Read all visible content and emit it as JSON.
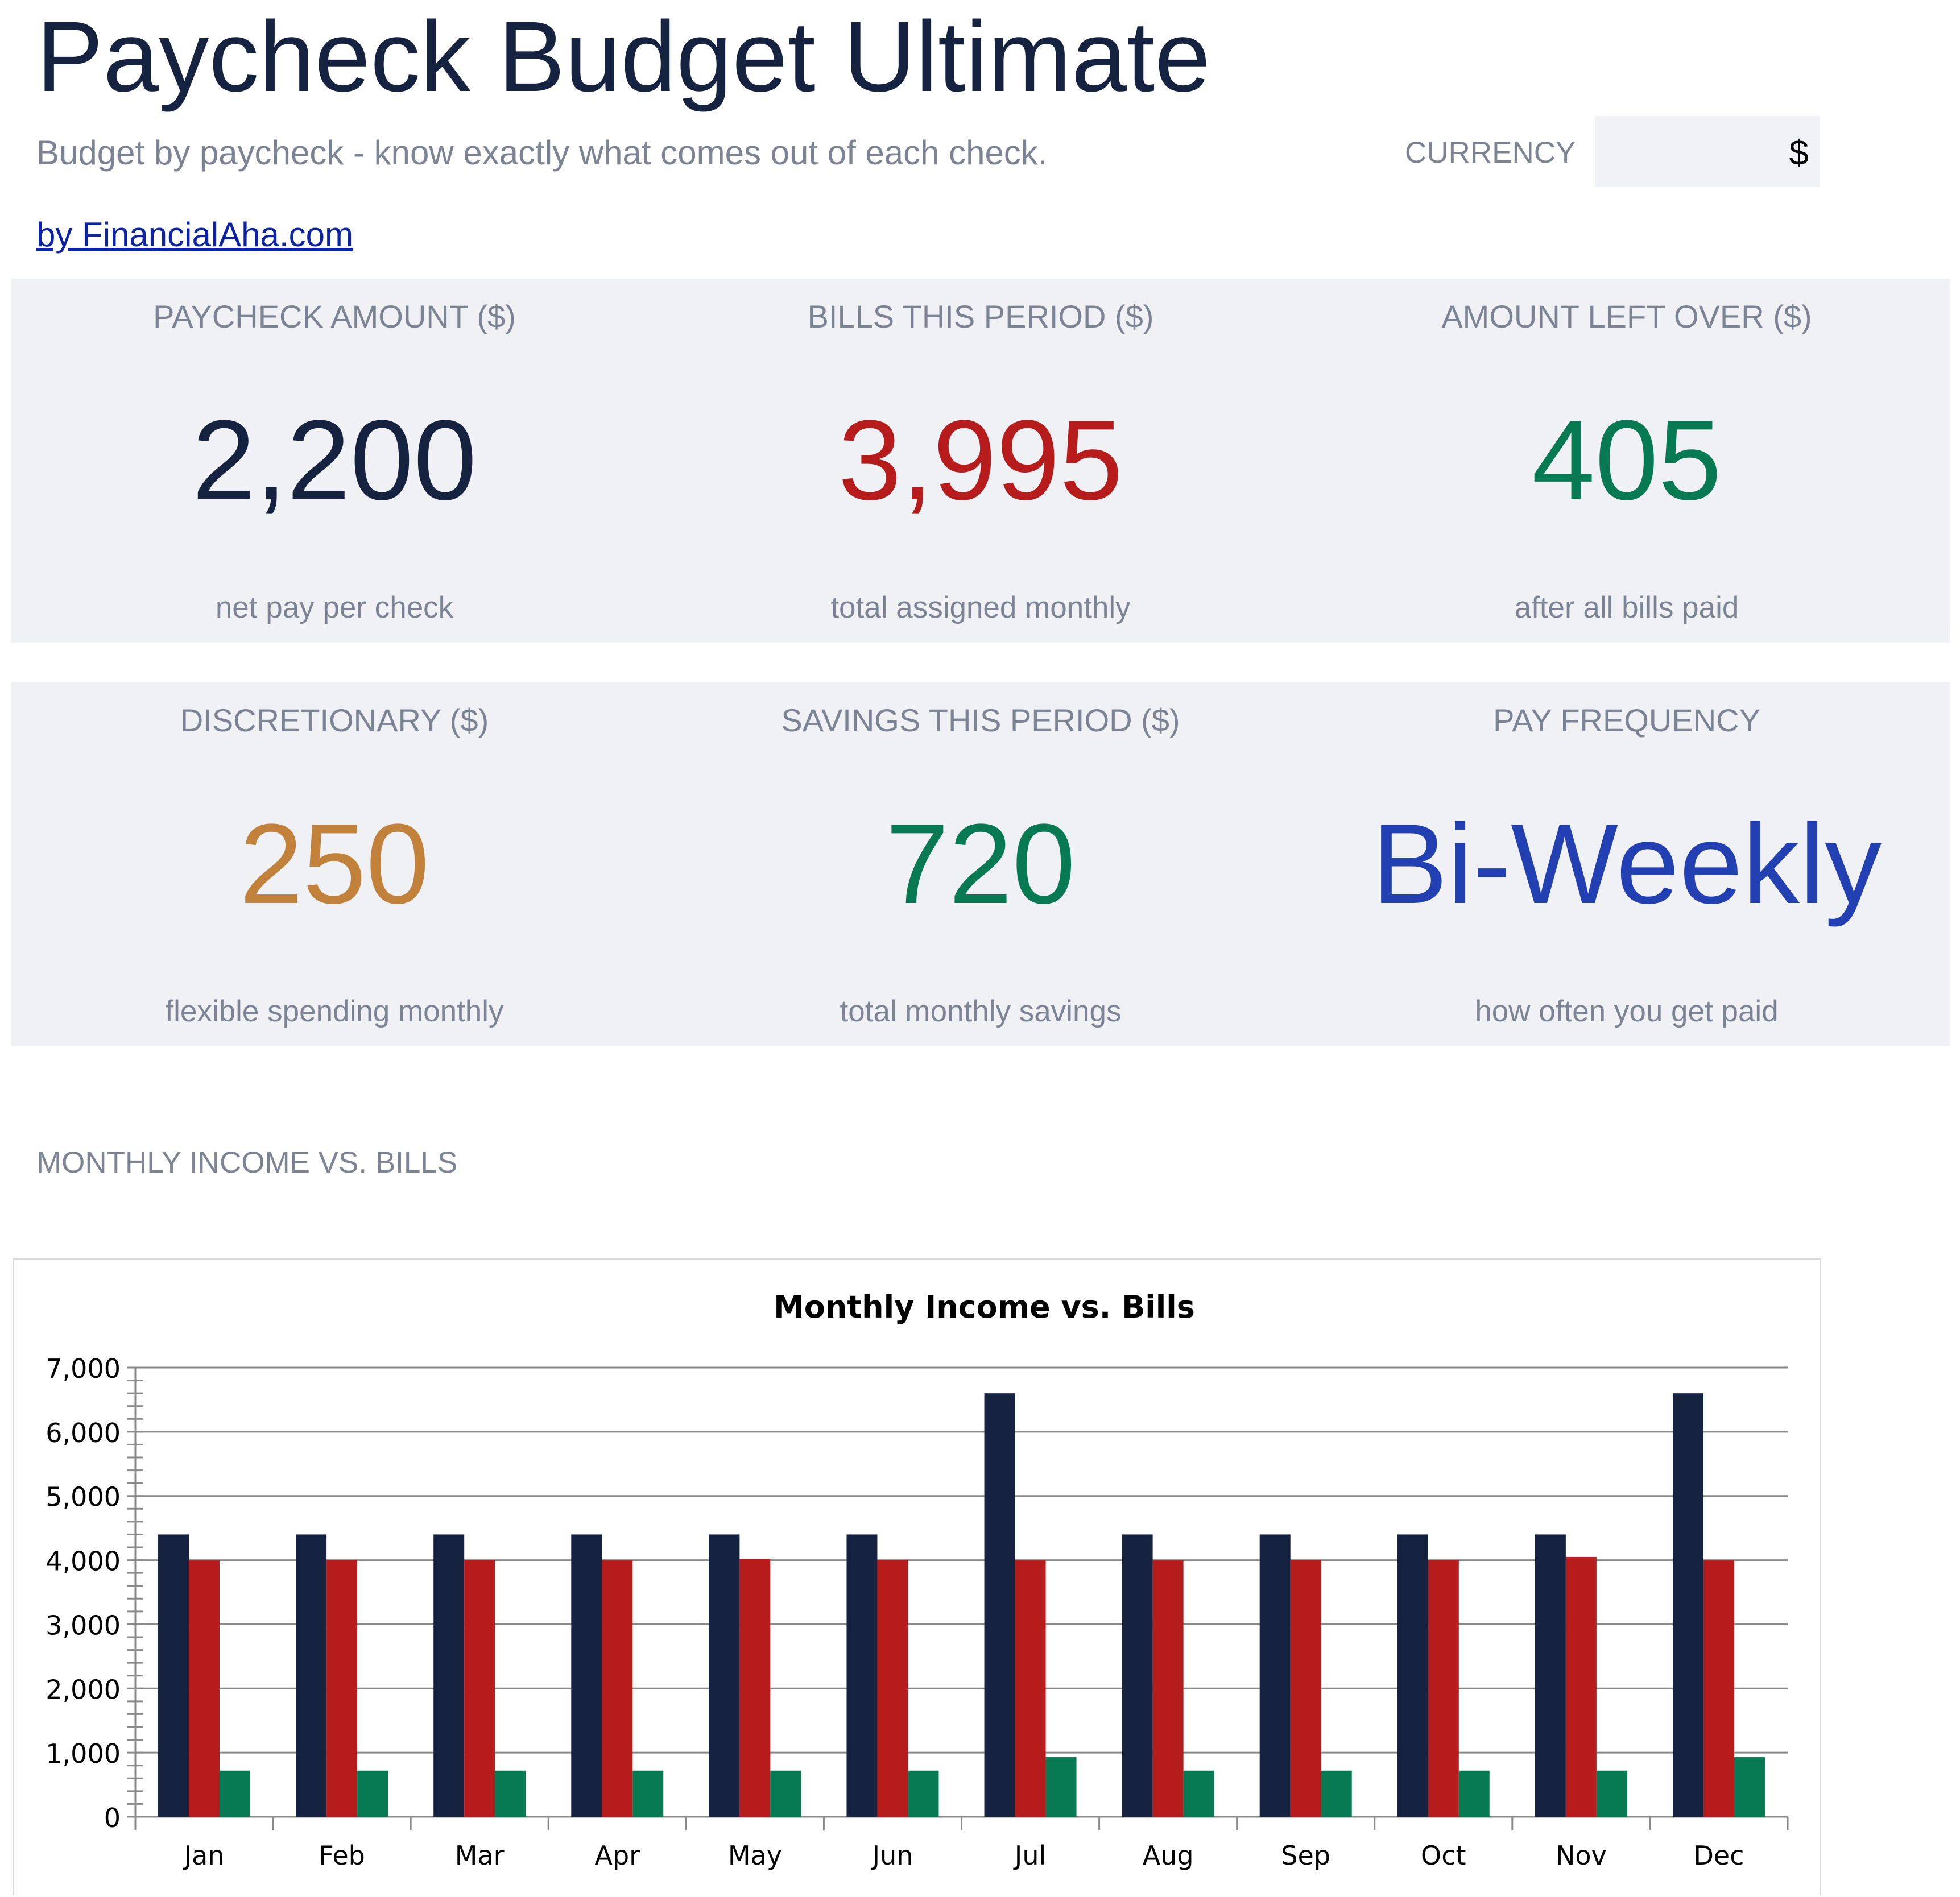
{
  "header": {
    "title": "Paycheck Budget Ultimate",
    "subtitle": "Budget by paycheck - know exactly what comes out of each check.",
    "byline": "by FinancialAha.com",
    "currency_label": "CURRENCY",
    "currency_value": "$"
  },
  "cards": [
    {
      "label": "PAYCHECK AMOUNT ($)",
      "value": "2,200",
      "note": "net pay per check",
      "color": "#162340"
    },
    {
      "label": "BILLS THIS PERIOD ($)",
      "value": "3,995",
      "note": "total assigned monthly",
      "color": "#b71c1c"
    },
    {
      "label": "AMOUNT LEFT OVER ($)",
      "value": "405",
      "note": "after all bills paid",
      "color": "#087a53"
    },
    {
      "label": "DISCRETIONARY ($)",
      "value": "250",
      "note": "flexible spending monthly",
      "color": "#c2813b"
    },
    {
      "label": "SAVINGS THIS PERIOD ($)",
      "value": "720",
      "note": "total monthly savings",
      "color": "#087a53"
    },
    {
      "label": "PAY FREQUENCY",
      "value": "Bi-Weekly",
      "note": "how often you get paid",
      "color": "#2340b3"
    }
  ],
  "section_label": "MONTHLY INCOME VS. BILLS",
  "chart_data": {
    "type": "bar",
    "title": "Monthly Income vs. Bills",
    "categories": [
      "Jan",
      "Feb",
      "Mar",
      "Apr",
      "May",
      "Jun",
      "Jul",
      "Aug",
      "Sep",
      "Oct",
      "Nov",
      "Dec"
    ],
    "series": [
      {
        "values": [
          4400,
          4400,
          4400,
          4400,
          4400,
          4400,
          6600,
          4400,
          4400,
          4400,
          4400,
          6600
        ],
        "color": "#162340"
      },
      {
        "values": [
          3995,
          4000,
          4000,
          3995,
          4020,
          4000,
          3995,
          3995,
          4000,
          4000,
          4050,
          3995
        ],
        "color": "#b71c1c"
      },
      {
        "values": [
          720,
          720,
          720,
          720,
          720,
          720,
          930,
          720,
          720,
          720,
          720,
          930
        ],
        "color": "#087a53"
      }
    ],
    "ylim": [
      0,
      7000
    ],
    "yticks": [
      0,
      1000,
      2000,
      3000,
      4000,
      5000,
      6000,
      7000
    ],
    "ytick_labels": [
      "0",
      "1,000",
      "2,000",
      "3,000",
      "4,000",
      "5,000",
      "6,000",
      "7,000"
    ],
    "grid": true,
    "legend": "none"
  }
}
